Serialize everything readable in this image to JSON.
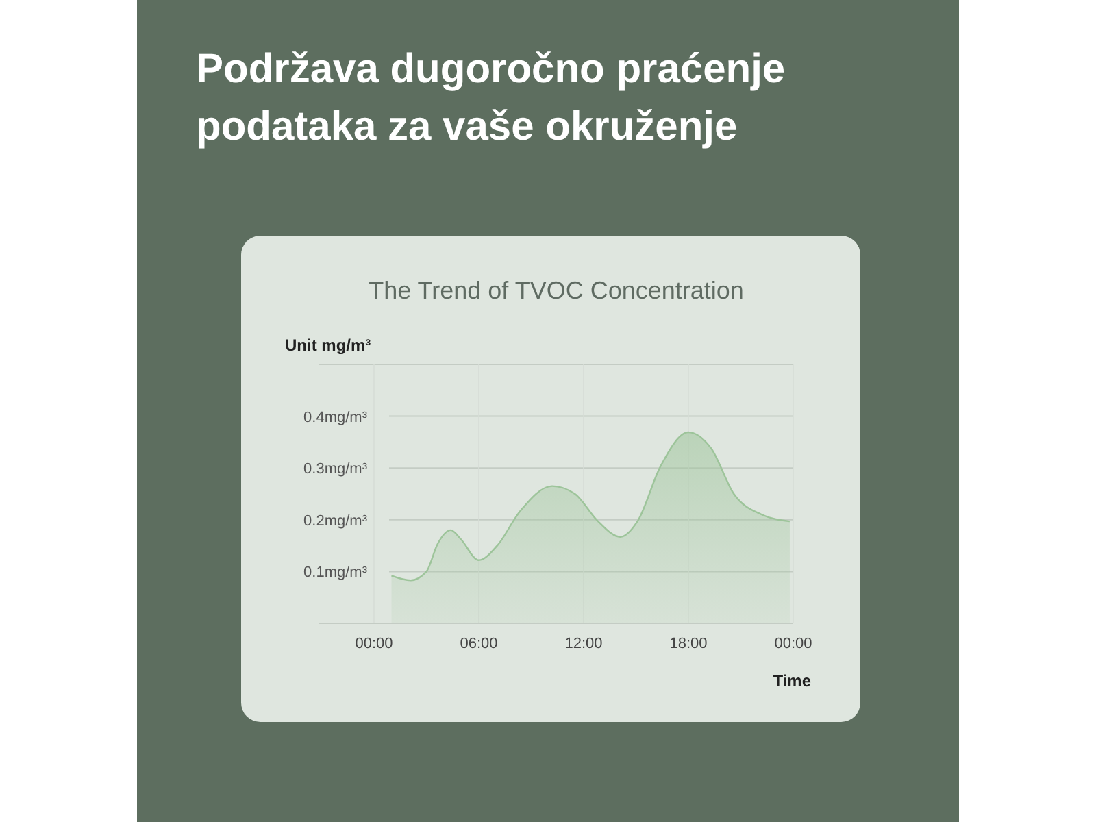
{
  "chart_data": {
    "type": "area",
    "title": "Podržava dugoročno praćenje podataka za vaše okruženje",
    "subtitle": "The Trend of TVOC Concentration",
    "xlabel": "Time",
    "ylabel": "Unit mg/m³",
    "x": [
      1.0,
      2.1,
      3.0,
      3.65,
      4.4,
      4.96,
      6.0,
      7.05,
      8.35,
      10.2,
      11.5,
      12.8,
      14.1,
      15.1,
      16.4,
      18.0,
      19.3,
      20.6,
      22.2,
      23.8
    ],
    "series": [
      {
        "color": "#9dc49a",
        "values": [
          0.092,
          0.083,
          0.1,
          0.154,
          0.18,
          0.163,
          0.122,
          0.15,
          0.216,
          0.265,
          0.25,
          0.198,
          0.167,
          0.198,
          0.303,
          0.369,
          0.338,
          0.25,
          0.21,
          0.197
        ]
      }
    ],
    "xlim": [
      0,
      24
    ],
    "ylim": [
      0,
      0.5
    ],
    "xticks": [
      {
        "value": 0,
        "label": "00:00"
      },
      {
        "value": 6,
        "label": "06:00"
      },
      {
        "value": 12,
        "label": "12:00"
      },
      {
        "value": 18,
        "label": "18:00"
      },
      {
        "value": 24,
        "label": "00:00"
      }
    ],
    "yticks": [
      {
        "value": 0,
        "label": null
      },
      {
        "value": 0.1,
        "label": "0.1mg/m³"
      },
      {
        "value": 0.2,
        "label": "0.2mg/m³"
      },
      {
        "value": 0.3,
        "label": "0.3mg/m³"
      },
      {
        "value": 0.4,
        "label": "0.4mg/m³"
      },
      {
        "value": 0.5,
        "label": null
      }
    ],
    "grid": true
  }
}
